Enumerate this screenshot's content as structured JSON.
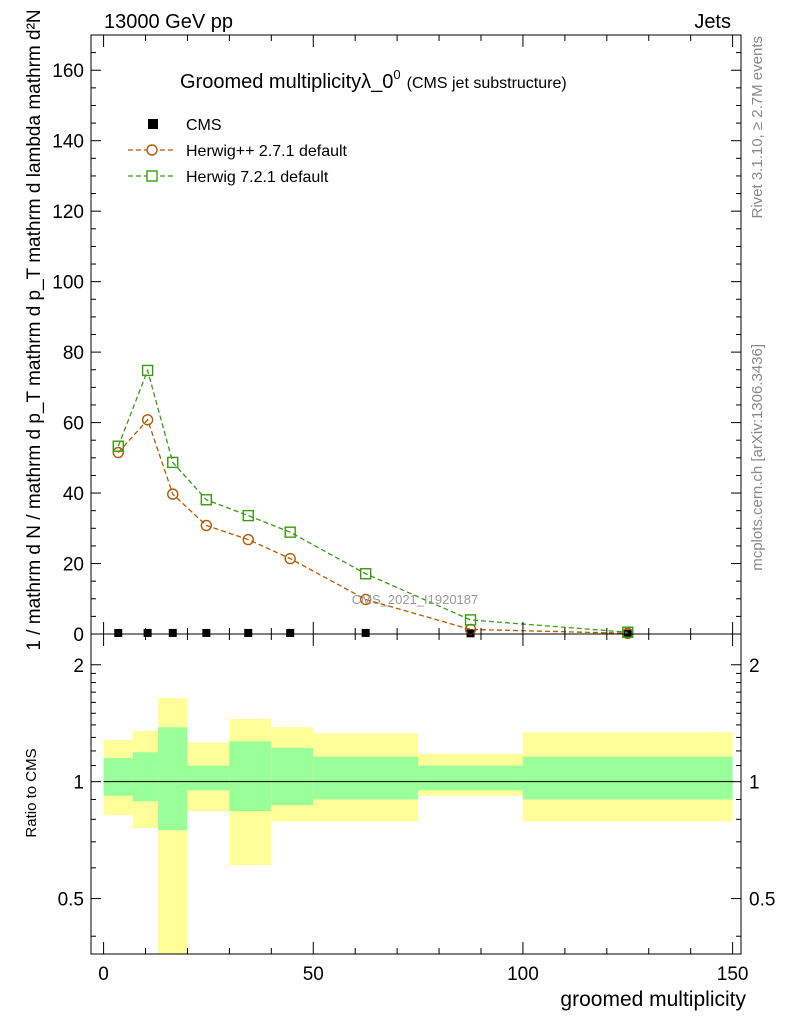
{
  "header": {
    "left": "13000 GeV pp",
    "right": "Jets"
  },
  "side_labels": {
    "rivet": "Rivet 3.1.10, ≥ 2.7M events",
    "mcplots": "mcplots.cern.ch [arXiv:1306.3436]"
  },
  "watermark": "CMS_2021_I1920187",
  "chart_data": [
    {
      "type": "line",
      "title": "Groomed multiplicityλ_0",
      "title_sup": "0",
      "subtitle": "(CMS jet substructure)",
      "ylabel": "1 / mathrm d N / mathrm d p_T mathrm d p_T mathrm d lambda mathrm d²N",
      "ylim": [
        0,
        170
      ],
      "yticks": [
        0,
        20,
        40,
        60,
        80,
        100,
        120,
        140,
        160
      ],
      "xlim": [
        -3,
        152
      ],
      "legend_position": "top-left",
      "series": [
        {
          "name": "CMS",
          "marker": "filled-square",
          "color": "#000000",
          "x": [
            3.5,
            10.5,
            16.5,
            24.5,
            34.5,
            44.5,
            62.5,
            87.5,
            125
          ],
          "values": [
            0.3,
            0.3,
            0.3,
            0.3,
            0.3,
            0.3,
            0.3,
            0.2,
            0.1
          ]
        },
        {
          "name": "Herwig++ 2.7.1 default",
          "marker": "open-circle",
          "color": "#b35a00",
          "x": [
            3.5,
            10.5,
            16.5,
            24.5,
            34.5,
            44.5,
            62.5,
            87.5,
            125
          ],
          "values": [
            51.5,
            60.8,
            39.7,
            30.8,
            26.8,
            21.4,
            9.8,
            1.3,
            0.2
          ]
        },
        {
          "name": "Herwig 7.2.1 default",
          "marker": "open-square",
          "color": "#3a9a10",
          "x": [
            3.5,
            10.5,
            16.5,
            24.5,
            34.5,
            44.5,
            62.5,
            87.5,
            125
          ],
          "values": [
            53.3,
            74.8,
            48.7,
            38.1,
            33.6,
            28.9,
            17.1,
            4.0,
            0.5
          ]
        }
      ]
    },
    {
      "type": "area",
      "ylabel": "Ratio to CMS",
      "xlabel": "groomed multiplicity",
      "yscale": "log",
      "ylim": [
        0.36,
        2.4
      ],
      "yticks": [
        0.5,
        1,
        2
      ],
      "ytick_labels": [
        "0.5",
        "1",
        "2"
      ],
      "xlim": [
        -3,
        152
      ],
      "xticks": [
        0,
        50,
        100,
        150
      ],
      "xtick_labels": [
        "0",
        "50",
        "100",
        "150"
      ],
      "reference_line": 1,
      "band_colors": {
        "outer": "#ffff99",
        "inner": "#99ff99"
      },
      "bins": [
        {
          "x0": 0,
          "x1": 7,
          "outer": [
            0.82,
            1.28
          ],
          "inner": [
            0.92,
            1.15
          ]
        },
        {
          "x0": 7,
          "x1": 13,
          "outer": [
            0.76,
            1.35
          ],
          "inner": [
            0.89,
            1.19
          ]
        },
        {
          "x0": 13,
          "x1": 20,
          "outer": [
            0.36,
            1.64
          ],
          "inner": [
            0.75,
            1.38
          ]
        },
        {
          "x0": 20,
          "x1": 30,
          "outer": [
            0.84,
            1.26
          ],
          "inner": [
            0.95,
            1.1
          ]
        },
        {
          "x0": 30,
          "x1": 40,
          "outer": [
            0.61,
            1.45
          ],
          "inner": [
            0.84,
            1.27
          ]
        },
        {
          "x0": 40,
          "x1": 50,
          "outer": [
            0.79,
            1.38
          ],
          "inner": [
            0.87,
            1.22
          ]
        },
        {
          "x0": 50,
          "x1": 75,
          "outer": [
            0.79,
            1.33
          ],
          "inner": [
            0.9,
            1.16
          ]
        },
        {
          "x0": 75,
          "x1": 100,
          "outer": [
            0.92,
            1.18
          ],
          "inner": [
            0.95,
            1.1
          ]
        },
        {
          "x0": 100,
          "x1": 150,
          "outer": [
            0.79,
            1.34
          ],
          "inner": [
            0.9,
            1.16
          ]
        }
      ]
    }
  ]
}
